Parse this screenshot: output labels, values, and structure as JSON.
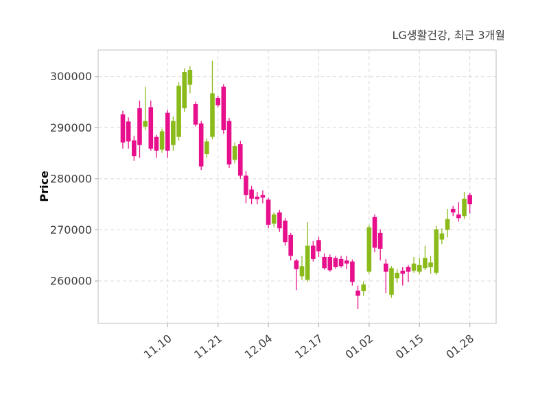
{
  "title": "LG생활건강, 최근 3개월",
  "colors": {
    "up": "#8BBA1B",
    "down": "#E70F8C",
    "grid": "#d8d8d8",
    "border": "#c9c9c9",
    "tick": "#b5b5b5",
    "label_text": "#3d3d3d"
  },
  "y_axis": {
    "label": "Price",
    "tick_labels": [
      "300000",
      "290000",
      "280000",
      "270000",
      "260000"
    ],
    "tick_values": [
      300000,
      290000,
      280000,
      270000,
      260000
    ]
  },
  "x_axis": {
    "tick_labels": [
      "11.10",
      "11.21",
      "12.04",
      "12.17",
      "01.02",
      "01.15",
      "01.28"
    ],
    "tick_indices": [
      8,
      17,
      26,
      35,
      44,
      53,
      62
    ]
  },
  "chart_data": {
    "type": "candlestick",
    "title": "LG생활건강, 최근 3개월",
    "xlabel": "",
    "ylabel": "Price",
    "ylim": [
      251700,
      305200
    ],
    "grid": "dashed",
    "legend": "none",
    "up_color": "#8BBA1B",
    "down_color": "#E70F8C",
    "x_tick_labels": [
      "11.10",
      "11.21",
      "12.04",
      "12.17",
      "01.02",
      "01.15",
      "01.28"
    ],
    "x_tick_indices": [
      8,
      17,
      26,
      35,
      44,
      53,
      62
    ],
    "ohlc_order": [
      "open",
      "high",
      "low",
      "close"
    ],
    "candles": [
      [
        292600,
        293300,
        285900,
        287100
      ],
      [
        291200,
        292000,
        285900,
        287300
      ],
      [
        287500,
        288400,
        283500,
        284400
      ],
      [
        293800,
        295300,
        284100,
        286600
      ],
      [
        290200,
        298000,
        289500,
        291300
      ],
      [
        294000,
        295300,
        285500,
        285900
      ],
      [
        288200,
        288600,
        284100,
        285500
      ],
      [
        285700,
        289800,
        285100,
        289300
      ],
      [
        292900,
        293500,
        284100,
        285500
      ],
      [
        286600,
        292200,
        285500,
        291300
      ],
      [
        288200,
        298900,
        287500,
        298200
      ],
      [
        293800,
        301600,
        293100,
        300900
      ],
      [
        298400,
        302000,
        296700,
        301300
      ],
      [
        294600,
        295100,
        290200,
        290600
      ],
      [
        290800,
        291300,
        281700,
        282400
      ],
      [
        284800,
        287900,
        284100,
        287300
      ],
      [
        288200,
        303100,
        287700,
        296700
      ],
      [
        295800,
        296200,
        294000,
        294400
      ],
      [
        298000,
        298500,
        288800,
        289500
      ],
      [
        291300,
        291900,
        282100,
        282800
      ],
      [
        283700,
        287100,
        283000,
        286400
      ],
      [
        286800,
        287400,
        280000,
        280600
      ],
      [
        280600,
        281500,
        275200,
        276800
      ],
      [
        277900,
        278600,
        275000,
        276100
      ],
      [
        276500,
        277400,
        275000,
        276000
      ],
      [
        276800,
        277700,
        275200,
        276300
      ],
      [
        275900,
        276300,
        270300,
        271000
      ],
      [
        271200,
        273400,
        270500,
        273000
      ],
      [
        273400,
        273900,
        269600,
        270300
      ],
      [
        271800,
        272300,
        266900,
        267600
      ],
      [
        269000,
        269400,
        264000,
        264900
      ],
      [
        264000,
        264300,
        258200,
        262300
      ],
      [
        260900,
        264900,
        260200,
        262900
      ],
      [
        260200,
        271500,
        259800,
        266900
      ],
      [
        266900,
        267800,
        263800,
        264300
      ],
      [
        268000,
        268600,
        264700,
        265800
      ],
      [
        264700,
        265400,
        262200,
        262500
      ],
      [
        264700,
        265200,
        261800,
        262100
      ],
      [
        264500,
        264900,
        262400,
        262700
      ],
      [
        264300,
        264900,
        262600,
        262900
      ],
      [
        264000,
        264900,
        262300,
        263400
      ],
      [
        263800,
        264200,
        259100,
        259800
      ],
      [
        258100,
        259100,
        254500,
        257100
      ],
      [
        258000,
        259900,
        257100,
        259300
      ],
      [
        261800,
        271000,
        261400,
        270500
      ],
      [
        272500,
        273000,
        265600,
        266500
      ],
      [
        269400,
        270100,
        264000,
        266300
      ],
      [
        263400,
        264300,
        257600,
        261800
      ],
      [
        257300,
        262900,
        256700,
        262500
      ],
      [
        260500,
        262300,
        259600,
        261600
      ],
      [
        262000,
        262700,
        259100,
        261400
      ],
      [
        262700,
        263100,
        259800,
        261800
      ],
      [
        262000,
        264700,
        261600,
        263400
      ],
      [
        261800,
        264500,
        261300,
        263100
      ],
      [
        262500,
        266900,
        262100,
        264500
      ],
      [
        262700,
        264900,
        261400,
        263600
      ],
      [
        261600,
        270800,
        261200,
        270100
      ],
      [
        268100,
        270300,
        267200,
        269300
      ],
      [
        270000,
        274100,
        268500,
        272100
      ],
      [
        274100,
        274700,
        272700,
        273400
      ],
      [
        273000,
        275400,
        271600,
        272300
      ],
      [
        272700,
        277400,
        272100,
        276100
      ],
      [
        276800,
        277200,
        273200,
        275000
      ]
    ]
  }
}
